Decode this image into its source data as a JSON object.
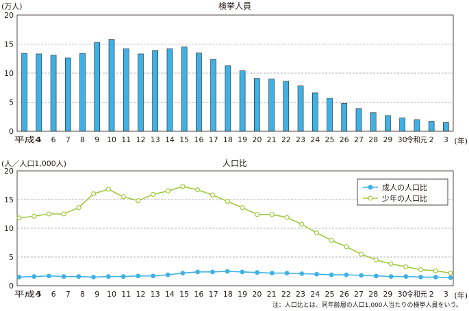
{
  "chart_data": [
    {
      "type": "bar",
      "title": "検挙人員",
      "ylabel": "(万人)",
      "xlabel": "",
      "x_unit": "(年)",
      "ylim": [
        0,
        20
      ],
      "yticks": [
        0,
        5,
        10,
        15,
        20
      ],
      "grid": true,
      "bar_color": "#3fb1e5",
      "categories": [
        "平成4",
        "5",
        "6",
        "7",
        "8",
        "9",
        "10",
        "11",
        "12",
        "13",
        "14",
        "15",
        "16",
        "17",
        "18",
        "19",
        "20",
        "21",
        "22",
        "23",
        "24",
        "25",
        "26",
        "27",
        "28",
        "29",
        "30",
        "令和元",
        "2",
        "3"
      ],
      "values": [
        13.4,
        13.3,
        13.1,
        12.6,
        13.4,
        15.3,
        15.8,
        14.2,
        13.3,
        13.9,
        14.2,
        14.5,
        13.5,
        12.4,
        11.3,
        10.4,
        9.1,
        9.0,
        8.6,
        7.8,
        6.6,
        5.7,
        4.8,
        3.9,
        3.2,
        2.7,
        2.3,
        2.0,
        1.7,
        1.5
      ]
    },
    {
      "type": "line",
      "title": "人口比",
      "ylabel": "(人／人口1,000人)",
      "xlabel": "",
      "x_unit": "(年)",
      "ylim": [
        0,
        20
      ],
      "yticks": [
        0,
        5,
        10,
        15,
        20
      ],
      "grid": true,
      "legend_position": "top-right",
      "categories": [
        "平成4",
        "5",
        "6",
        "7",
        "8",
        "9",
        "10",
        "11",
        "12",
        "13",
        "14",
        "15",
        "16",
        "17",
        "18",
        "19",
        "20",
        "21",
        "22",
        "23",
        "24",
        "25",
        "26",
        "27",
        "28",
        "29",
        "30",
        "令和元",
        "2",
        "3"
      ],
      "series": [
        {
          "name": "成人の人口比",
          "color": "#3fb1e5",
          "values": [
            1.5,
            1.6,
            1.7,
            1.6,
            1.6,
            1.5,
            1.6,
            1.6,
            1.7,
            1.7,
            1.9,
            2.2,
            2.4,
            2.4,
            2.5,
            2.4,
            2.3,
            2.2,
            2.2,
            2.1,
            2.0,
            1.9,
            1.9,
            1.8,
            1.7,
            1.6,
            1.6,
            1.5,
            1.5,
            1.4
          ]
        },
        {
          "name": "少年の人口比",
          "color": "#a0c73a",
          "values": [
            11.8,
            12.1,
            12.5,
            12.5,
            13.6,
            16.0,
            16.8,
            15.5,
            14.8,
            15.9,
            16.5,
            17.3,
            16.7,
            15.8,
            14.7,
            13.6,
            12.4,
            12.4,
            11.9,
            10.7,
            9.2,
            7.9,
            6.8,
            5.5,
            4.5,
            3.8,
            3.3,
            2.8,
            2.6,
            2.2
          ]
        }
      ]
    }
  ],
  "footnote": "注：人口比とは、同年齢層の人口1,000人当たりの検挙人員をいう。"
}
